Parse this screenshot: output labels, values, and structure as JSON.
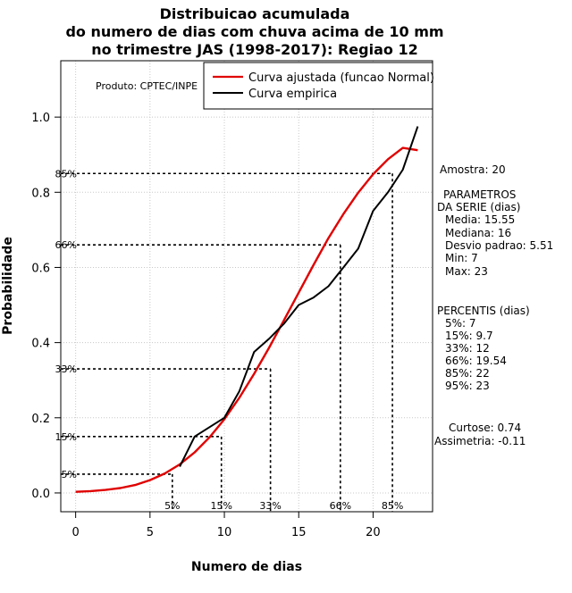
{
  "chart_data": {
    "type": "line",
    "title_lines": [
      "Distribuicao acumulada",
      "do numero de dias com chuva acima de 10 mm",
      "no trimestre JAS (1998-2017): Regiao 12"
    ],
    "xlabel": "Numero de dias",
    "ylabel": "Probabilidade",
    "xlim": [
      -1,
      24
    ],
    "ylim": [
      -0.05,
      1.15
    ],
    "x_ticks": [
      0,
      5,
      10,
      15,
      20
    ],
    "y_ticks": [
      0.0,
      0.2,
      0.4,
      0.6,
      0.8,
      1.0
    ],
    "y_tick_labels": [
      "0.0",
      "0.2",
      "0.4",
      "0.6",
      "0.8",
      "1.0"
    ],
    "grid": true,
    "legend_position": "top-right",
    "product_note": "Produto: CPTEC/INPE",
    "series": [
      {
        "name": "Curva ajustada (funcao Normal)",
        "color": "#e00000",
        "style": "smooth",
        "x": [
          0,
          1,
          2,
          3,
          4,
          5,
          6,
          7,
          8,
          9,
          10,
          11,
          12,
          13,
          14,
          15,
          16,
          17,
          18,
          19,
          20,
          21,
          22,
          23
        ],
        "y": [
          0.003,
          0.005,
          0.008,
          0.013,
          0.021,
          0.034,
          0.052,
          0.076,
          0.108,
          0.148,
          0.196,
          0.253,
          0.317,
          0.386,
          0.459,
          0.533,
          0.607,
          0.678,
          0.742,
          0.799,
          0.848,
          0.888,
          0.918,
          0.912
        ]
      },
      {
        "name": "Curva empirica",
        "color": "#000000",
        "style": "linear",
        "x": [
          7,
          8,
          10,
          11,
          12,
          13,
          14,
          15,
          16,
          17,
          18,
          19,
          20,
          21,
          22,
          23
        ],
        "y": [
          0.07,
          0.15,
          0.2,
          0.27,
          0.375,
          0.41,
          0.45,
          0.5,
          0.52,
          0.55,
          0.6,
          0.65,
          0.75,
          0.8,
          0.86,
          0.975
        ]
      }
    ],
    "percentile_markers": [
      {
        "label": "5%",
        "p": 0.05,
        "x": 6.5
      },
      {
        "label": "15%",
        "p": 0.15,
        "x": 9.8
      },
      {
        "label": "33%",
        "p": 0.33,
        "x": 13.1
      },
      {
        "label": "66%",
        "p": 0.66,
        "x": 17.8
      },
      {
        "label": "85%",
        "p": 0.85,
        "x": 21.3
      }
    ],
    "side_panel": {
      "amostra": "Amostra: 20",
      "param_header": [
        "PARAMETROS",
        "DA SERIE (dias)"
      ],
      "params": [
        "Media: 15.55",
        "Mediana: 16",
        "Desvio padrao: 5.51",
        "Min: 7",
        "Max: 23"
      ],
      "perc_header": "PERCENTIS (dias)",
      "percentis": [
        "5%: 7",
        "15%: 9.7",
        "33%: 12",
        "66%: 19.54",
        "85%: 22",
        "95%: 23"
      ],
      "curtose": "Curtose: 0.74",
      "assimetria": "Assimetria: -0.11"
    }
  }
}
